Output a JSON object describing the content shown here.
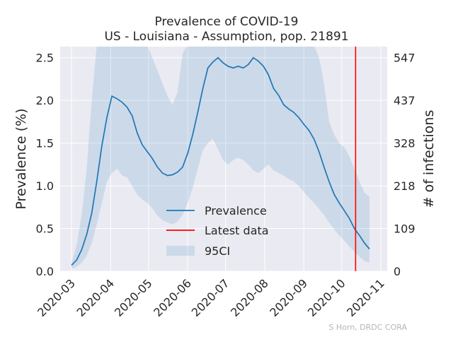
{
  "chart_data": {
    "type": "line",
    "title": "Prevalence of COVID-19",
    "subtitle": "US - Louisiana - Assumption, pop. 21891",
    "ylabel": "Prevalence (%)",
    "y2label": "# of infections",
    "ylim": [
      0,
      2.63
    ],
    "yticks": [
      "0.0",
      "0.5",
      "1.0",
      "1.5",
      "2.0",
      "2.5"
    ],
    "y2ticks": [
      {
        "value": 0,
        "label": "0"
      },
      {
        "value": 0.5,
        "label": "109"
      },
      {
        "value": 1.0,
        "label": "218"
      },
      {
        "value": 1.5,
        "label": "328"
      },
      {
        "value": 2.0,
        "label": "437"
      },
      {
        "value": 2.5,
        "label": "547"
      }
    ],
    "xlim": [
      "2020-02-21",
      "2020-11-06"
    ],
    "xticks": [
      "2020-03",
      "2020-04",
      "2020-05",
      "2020-06",
      "2020-07",
      "2020-08",
      "2020-09",
      "2020-10",
      "2020-11"
    ],
    "latest_data": "2020-10-12",
    "grid": true,
    "legend_position": "lower center",
    "legend": [
      "Prevalence",
      "Latest data",
      "95CI"
    ],
    "credit": "S Horn, DRDC CORA",
    "colors": {
      "line": "#1f77b4",
      "latest": "#ff0000",
      "band": "#1f77b4",
      "background": "#eaeaf2"
    },
    "series": [
      {
        "name": "Prevalence",
        "x": [
          "2020-03-01",
          "2020-03-05",
          "2020-03-09",
          "2020-03-13",
          "2020-03-17",
          "2020-03-21",
          "2020-03-25",
          "2020-03-29",
          "2020-04-02",
          "2020-04-06",
          "2020-04-10",
          "2020-04-14",
          "2020-04-18",
          "2020-04-22",
          "2020-04-26",
          "2020-04-30",
          "2020-05-04",
          "2020-05-08",
          "2020-05-12",
          "2020-05-16",
          "2020-05-20",
          "2020-05-24",
          "2020-05-28",
          "2020-06-01",
          "2020-06-05",
          "2020-06-09",
          "2020-06-13",
          "2020-06-17",
          "2020-06-21",
          "2020-06-25",
          "2020-06-29",
          "2020-07-03",
          "2020-07-07",
          "2020-07-11",
          "2020-07-15",
          "2020-07-19",
          "2020-07-23",
          "2020-07-27",
          "2020-07-31",
          "2020-08-04",
          "2020-08-08",
          "2020-08-12",
          "2020-08-16",
          "2020-08-20",
          "2020-08-24",
          "2020-08-28",
          "2020-09-01",
          "2020-09-05",
          "2020-09-09",
          "2020-09-13",
          "2020-09-17",
          "2020-09-21",
          "2020-09-25",
          "2020-09-29",
          "2020-10-03",
          "2020-10-07",
          "2020-10-11",
          "2020-10-15",
          "2020-10-19",
          "2020-10-23"
        ],
        "values": [
          0.07,
          0.13,
          0.25,
          0.43,
          0.68,
          1.05,
          1.47,
          1.8,
          2.05,
          2.02,
          1.98,
          1.92,
          1.82,
          1.62,
          1.48,
          1.4,
          1.32,
          1.22,
          1.15,
          1.12,
          1.13,
          1.16,
          1.22,
          1.38,
          1.6,
          1.86,
          2.14,
          2.38,
          2.45,
          2.5,
          2.44,
          2.4,
          2.38,
          2.4,
          2.38,
          2.42,
          2.5,
          2.46,
          2.4,
          2.3,
          2.14,
          2.06,
          1.95,
          1.9,
          1.86,
          1.8,
          1.72,
          1.65,
          1.55,
          1.4,
          1.22,
          1.05,
          0.9,
          0.8,
          0.71,
          0.62,
          0.5,
          0.42,
          0.33,
          0.26
        ]
      },
      {
        "name": "95CI",
        "x": [
          "2020-03-01",
          "2020-03-05",
          "2020-03-09",
          "2020-03-13",
          "2020-03-17",
          "2020-03-21",
          "2020-03-25",
          "2020-03-29",
          "2020-04-02",
          "2020-04-06",
          "2020-04-10",
          "2020-04-14",
          "2020-04-18",
          "2020-04-22",
          "2020-04-26",
          "2020-04-30",
          "2020-05-04",
          "2020-05-08",
          "2020-05-12",
          "2020-05-16",
          "2020-05-20",
          "2020-05-24",
          "2020-05-28",
          "2020-06-01",
          "2020-06-05",
          "2020-06-09",
          "2020-06-13",
          "2020-06-17",
          "2020-06-21",
          "2020-06-25",
          "2020-06-29",
          "2020-07-03",
          "2020-07-07",
          "2020-07-11",
          "2020-07-15",
          "2020-07-19",
          "2020-07-23",
          "2020-07-27",
          "2020-07-31",
          "2020-08-04",
          "2020-08-08",
          "2020-08-12",
          "2020-08-16",
          "2020-08-20",
          "2020-08-24",
          "2020-08-28",
          "2020-09-01",
          "2020-09-05",
          "2020-09-09",
          "2020-09-13",
          "2020-09-17",
          "2020-09-21",
          "2020-09-25",
          "2020-09-29",
          "2020-10-03",
          "2020-10-07",
          "2020-10-11",
          "2020-10-15",
          "2020-10-19",
          "2020-10-23"
        ],
        "lower": [
          0.03,
          0.05,
          0.1,
          0.18,
          0.33,
          0.55,
          0.8,
          1.05,
          1.15,
          1.2,
          1.12,
          1.1,
          1.0,
          0.9,
          0.84,
          0.8,
          0.74,
          0.65,
          0.6,
          0.57,
          0.55,
          0.58,
          0.66,
          0.8,
          0.98,
          1.2,
          1.42,
          1.5,
          1.55,
          1.43,
          1.3,
          1.25,
          1.3,
          1.33,
          1.3,
          1.25,
          1.18,
          1.15,
          1.2,
          1.25,
          1.18,
          1.15,
          1.12,
          1.08,
          1.05,
          1.0,
          0.93,
          0.86,
          0.8,
          0.73,
          0.66,
          0.57,
          0.49,
          0.42,
          0.36,
          0.29,
          0.23,
          0.17,
          0.12,
          0.1
        ],
        "upper": [
          0.1,
          0.3,
          0.65,
          1.2,
          2.0,
          2.65,
          2.65,
          2.65,
          2.65,
          2.65,
          2.65,
          2.65,
          2.65,
          2.65,
          2.65,
          2.65,
          2.5,
          2.35,
          2.2,
          2.05,
          1.95,
          2.1,
          2.55,
          2.65,
          2.65,
          2.65,
          2.65,
          2.65,
          2.65,
          2.65,
          2.65,
          2.65,
          2.65,
          2.65,
          2.65,
          2.65,
          2.65,
          2.65,
          2.65,
          2.65,
          2.65,
          2.65,
          2.65,
          2.65,
          2.65,
          2.65,
          2.65,
          2.65,
          2.65,
          2.5,
          2.2,
          1.75,
          1.6,
          1.5,
          1.45,
          1.35,
          1.2,
          1.05,
          0.92,
          0.87
        ]
      }
    ]
  }
}
